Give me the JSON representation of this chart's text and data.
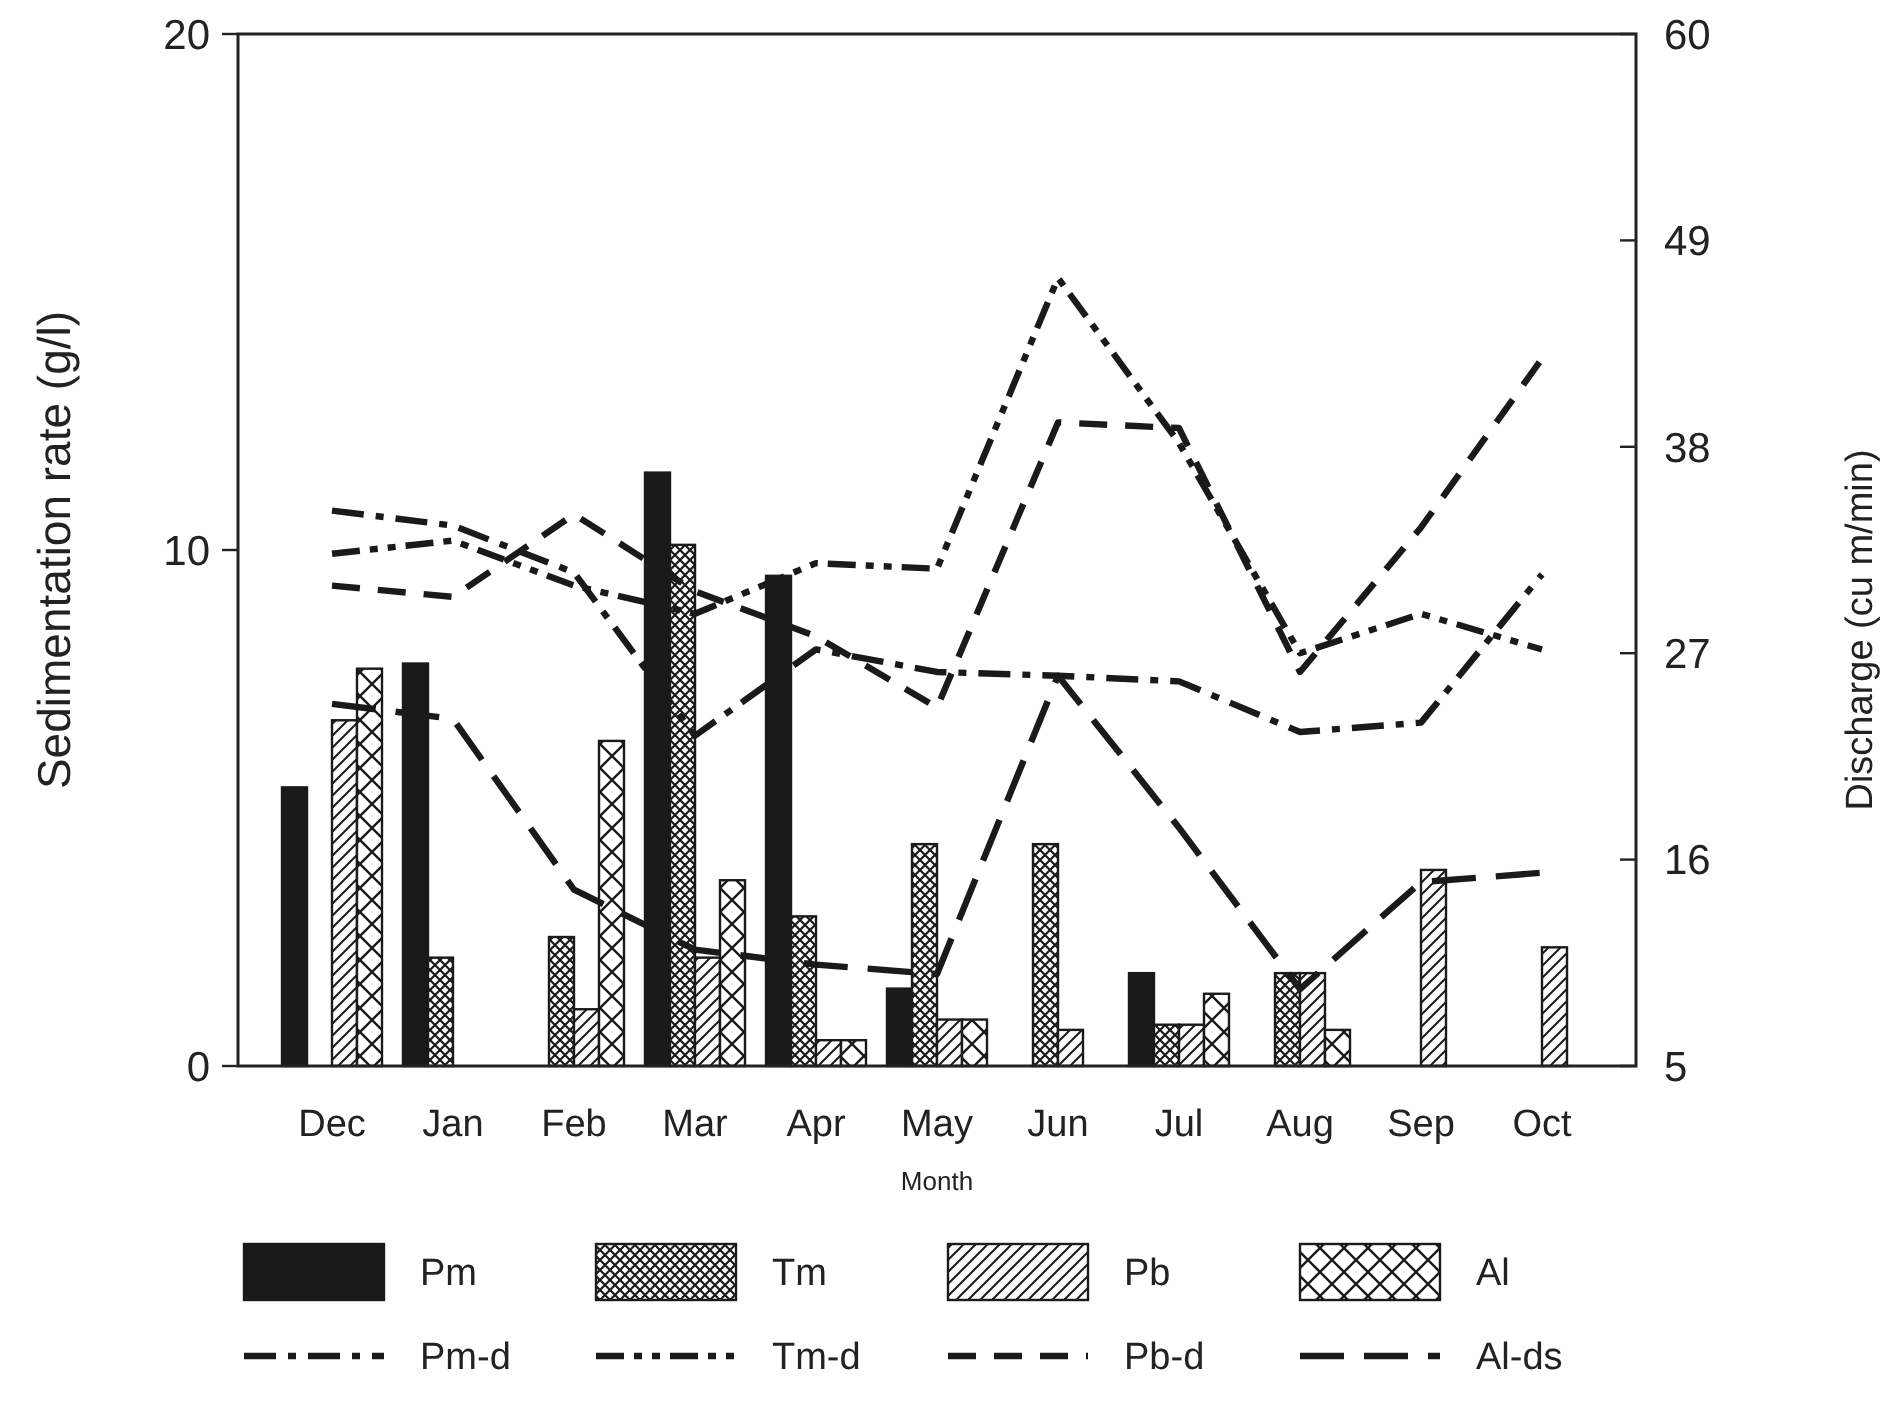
{
  "chart_data": {
    "type": "bar",
    "xlabel": "Month",
    "ylabel": "Sedimentation rate (g/l)",
    "y2label": "Discharge (cu m/min)",
    "categories": [
      "Dec",
      "Jan",
      "Feb",
      "Mar",
      "Apr",
      "May",
      "Jun",
      "Jul",
      "Aug",
      "Sep",
      "Oct"
    ],
    "ylim": [
      0,
      20
    ],
    "yticks": [
      0,
      10,
      20
    ],
    "y2lim": [
      5,
      60
    ],
    "y2ticks": [
      5,
      16,
      27,
      38,
      49,
      60
    ],
    "grid": false,
    "legend": "bottom",
    "series": [
      {
        "name": "Pm",
        "color": "#1a1a1a",
        "values": [
          5.4,
          7.8,
          null,
          11.5,
          9.5,
          1.5,
          null,
          1.8,
          null,
          null,
          null
        ]
      },
      {
        "name": "Tm",
        "color": "#1a1a1a",
        "values": [
          null,
          2.1,
          2.5,
          10.1,
          2.9,
          4.3,
          4.3,
          0.8,
          1.8,
          null,
          null
        ]
      },
      {
        "name": "Pb",
        "color": "#1a1a1a",
        "values": [
          6.7,
          null,
          1.1,
          2.1,
          0.5,
          0.9,
          0.7,
          0.8,
          1.8,
          3.8,
          2.3
        ]
      },
      {
        "name": "Al",
        "color": "#1a1a1a",
        "values": [
          7.7,
          null,
          6.3,
          3.6,
          0.5,
          0.9,
          null,
          1.4,
          0.7,
          null,
          null
        ]
      },
      {
        "name": "Pm-d",
        "type": "line",
        "axis": "y2",
        "color": "#1a1a1a",
        "line_style": "dashdot",
        "values": [
          34.6,
          33.8,
          31.3,
          22.6,
          27.2,
          26.0,
          25.8,
          25.5,
          22.8,
          23.3,
          31.2
        ]
      },
      {
        "name": "Tm-d",
        "type": "line",
        "axis": "y2",
        "color": "#1a1a1a",
        "line_style": "dashdotdot",
        "values": [
          32.3,
          33.0,
          30.6,
          29.1,
          31.8,
          31.5,
          47.0,
          38.2,
          27.0,
          29.1,
          27.2
        ]
      },
      {
        "name": "Pb-d",
        "type": "line",
        "axis": "y2",
        "color": "#1a1a1a",
        "line_style": "dashed",
        "values": [
          30.6,
          30.0,
          34.4,
          30.3,
          27.9,
          24.1,
          39.3,
          39.0,
          26.0,
          33.7,
          42.7
        ]
      },
      {
        "name": "Al-ds",
        "type": "line",
        "axis": "y2",
        "color": "#1a1a1a",
        "line_style": "longdashed",
        "values": [
          24.3,
          23.5,
          14.4,
          11.2,
          10.4,
          9.9,
          25.8,
          17.7,
          9.1,
          14.8,
          15.3
        ]
      }
    ]
  }
}
